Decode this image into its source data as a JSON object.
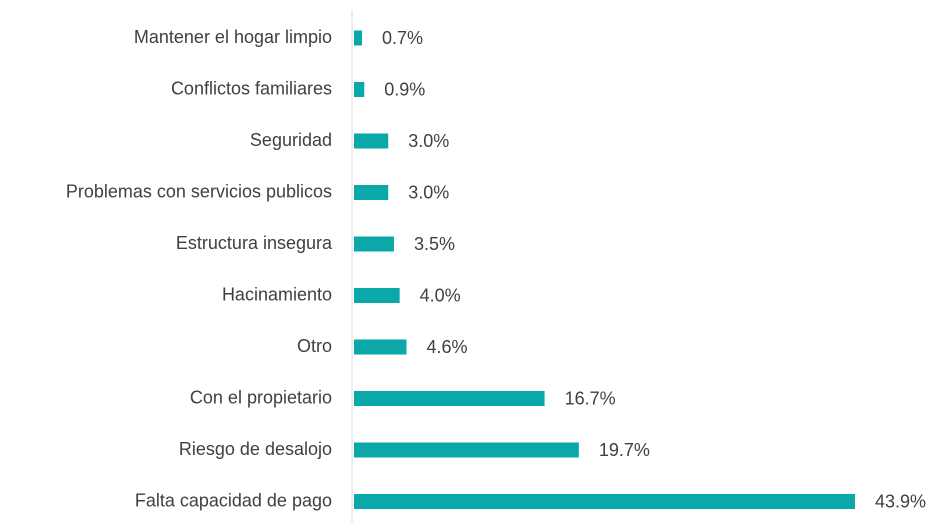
{
  "chart_data": {
    "type": "bar",
    "orientation": "horizontal",
    "categories": [
      "Mantener el hogar limpio",
      "Conflictos familiares",
      "Seguridad",
      "Problemas con servicios publicos",
      "Estructura insegura",
      "Hacinamiento",
      "Otro",
      "Con el propietario",
      "Riesgo de desalojo",
      "Falta capacidad de pago"
    ],
    "values": [
      0.7,
      0.9,
      3.0,
      3.0,
      3.5,
      4.0,
      4.6,
      16.7,
      19.7,
      43.9
    ],
    "value_labels": [
      "0.7%",
      "0.9%",
      "3.0%",
      "3.0%",
      "3.5%",
      "4.0%",
      "4.6%",
      "16.7%",
      "19.7%",
      "43.9%"
    ],
    "color": "#0aa8a8"
  }
}
